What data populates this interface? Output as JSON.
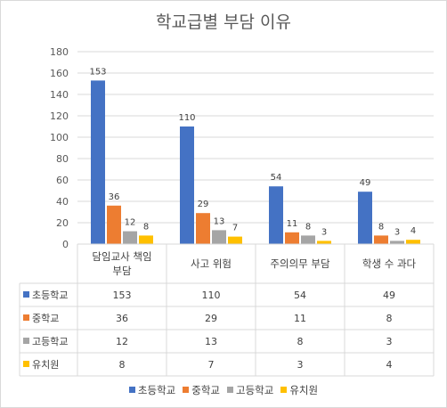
{
  "chart_data": {
    "type": "bar",
    "title": "학교급별 부담 이유",
    "categories": [
      "담임교사 책임 부담",
      "사고 위험",
      "주의의무 부담",
      "학생 수 과다"
    ],
    "category_lines": [
      [
        "담임교사 책임",
        "부담"
      ],
      [
        "사고 위험"
      ],
      [
        "주의의무 부담"
      ],
      [
        "학생 수 과다"
      ]
    ],
    "series": [
      {
        "name": "초등학교",
        "color": "#4472c4",
        "values": [
          153,
          110,
          54,
          49
        ]
      },
      {
        "name": "중학교",
        "color": "#ed7d31",
        "values": [
          36,
          29,
          11,
          8
        ]
      },
      {
        "name": "고등학교",
        "color": "#a5a5a5",
        "values": [
          12,
          13,
          8,
          3
        ]
      },
      {
        "name": "유치원",
        "color": "#ffc000",
        "values": [
          8,
          7,
          3,
          4
        ]
      }
    ],
    "ylim": [
      0,
      180
    ],
    "yticks": [
      0,
      20,
      40,
      60,
      80,
      100,
      120,
      140,
      160,
      180
    ],
    "grid": true,
    "legend": "bottom",
    "data_table": true
  }
}
